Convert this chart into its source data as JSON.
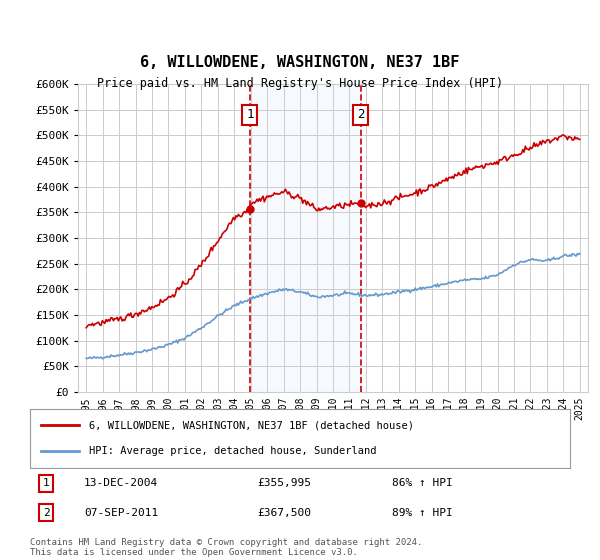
{
  "title": "6, WILLOWDENE, WASHINGTON, NE37 1BF",
  "subtitle": "Price paid vs. HM Land Registry's House Price Index (HPI)",
  "legend_line1": "6, WILLOWDENE, WASHINGTON, NE37 1BF (detached house)",
  "legend_line2": "HPI: Average price, detached house, Sunderland",
  "sale1_date": "13-DEC-2004",
  "sale1_price": 355995,
  "sale1_label": "86% ↑ HPI",
  "sale2_date": "07-SEP-2011",
  "sale2_price": 367500,
  "sale2_label": "89% ↑ HPI",
  "footer": "Contains HM Land Registry data © Crown copyright and database right 2024.\nThis data is licensed under the Open Government Licence v3.0.",
  "sale1_x": 2004.95,
  "sale2_x": 2011.68,
  "red_color": "#cc0000",
  "blue_color": "#6699cc",
  "shade_color": "#ddeeff",
  "grid_color": "#cccccc",
  "background_color": "#ffffff",
  "ylim": [
    0,
    600000
  ],
  "xlim": [
    1994.5,
    2025.5
  ]
}
